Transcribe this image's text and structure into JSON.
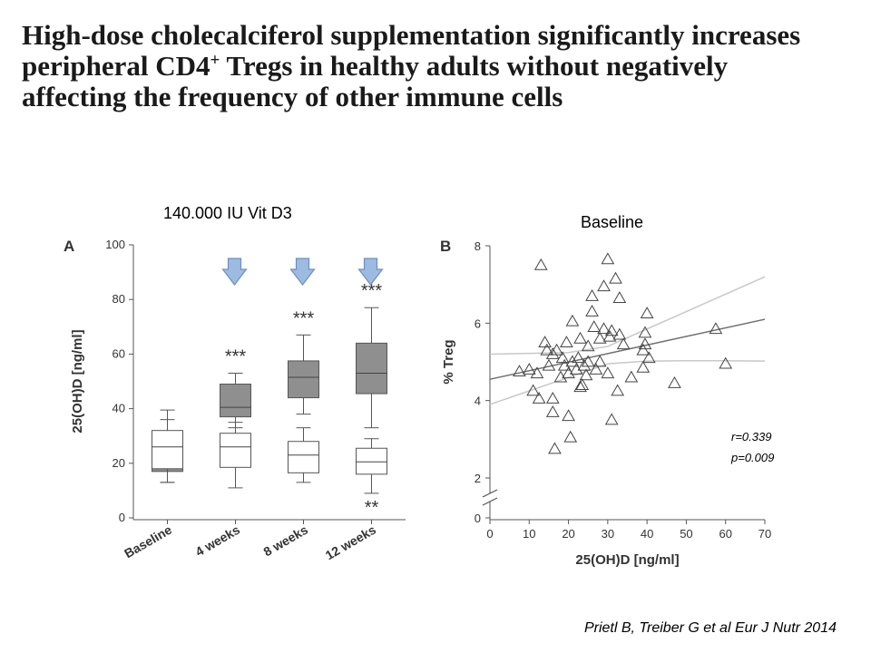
{
  "slide": {
    "title_lines": [
      "High-dose cholecalciferol supplementation significantly increases",
      "peripheral CD4",
      " Tregs in healthy adults without negatively",
      "affecting the frequency of other immune cells"
    ],
    "title_superscript": "+",
    "dose_label": "140.000 IU Vit D3",
    "baseline_label": "Baseline",
    "stats": {
      "r": "r=0.339",
      "p": "p=0.009"
    },
    "citation": "Prietl B, Treiber G et al Eur J Nutr 2014"
  },
  "chart_data": [
    {
      "type": "box",
      "panel": "A",
      "ylabel": "25(OH)D [ng/ml]",
      "ylim": [
        0,
        100
      ],
      "yticks": [
        0,
        20,
        40,
        60,
        80,
        100
      ],
      "categories": [
        "Baseline",
        "4 weeks",
        "8 weeks",
        "12 weeks"
      ],
      "dose_arrow_categories": [
        "4 weeks",
        "8 weeks",
        "12 weeks"
      ],
      "arrow_color": "#9dbbe0",
      "arrow_stroke": "#6d8fbf",
      "box_fill_treated": "#8f8f8f",
      "box_fill_control": "#ffffff",
      "series": [
        {
          "group": "treated",
          "boxes": [
            {
              "category": "Baseline",
              "whisker_low": 13,
              "q1": 17,
              "median": 18.5,
              "q3": 31.5,
              "whisker_high": 39.5,
              "annotation": ""
            },
            {
              "category": "4 weeks",
              "whisker_low": 33,
              "q1": 37,
              "median": 40.5,
              "q3": 49,
              "whisker_high": 53,
              "annotation": "***"
            },
            {
              "category": "8 weeks",
              "whisker_low": 38,
              "q1": 44,
              "median": 51.5,
              "q3": 57.5,
              "whisker_high": 67,
              "annotation": "***"
            },
            {
              "category": "12 weeks",
              "whisker_low": 33,
              "q1": 45.5,
              "median": 53,
              "q3": 64,
              "whisker_high": 77,
              "annotation": "***"
            }
          ]
        },
        {
          "group": "control",
          "boxes": [
            {
              "category": "Baseline",
              "whisker_low": 13,
              "q1": 18,
              "median": 26,
              "q3": 32,
              "whisker_high": 36,
              "annotation": ""
            },
            {
              "category": "4 weeks",
              "whisker_low": 11,
              "q1": 18.5,
              "median": 26,
              "q3": 31,
              "whisker_high": 35,
              "annotation": ""
            },
            {
              "category": "8 weeks",
              "whisker_low": 13,
              "q1": 16.5,
              "median": 23,
              "q3": 28,
              "whisker_high": 33,
              "annotation": ""
            },
            {
              "category": "12 weeks",
              "whisker_low": 9,
              "q1": 16,
              "median": 20.5,
              "q3": 25.5,
              "whisker_high": 29,
              "annotation": "**"
            }
          ]
        }
      ]
    },
    {
      "type": "scatter",
      "panel": "B",
      "xlabel": "25(OH)D [ng/ml]",
      "ylabel": "% Treg",
      "xlim": [
        0,
        70
      ],
      "xticks": [
        0,
        10,
        20,
        30,
        40,
        50,
        60,
        70
      ],
      "ylim": [
        0,
        8
      ],
      "yticks": [
        0,
        2,
        4,
        6,
        8
      ],
      "axis_break": true,
      "marker": "open-triangle",
      "points": [
        [
          7.5,
          4.75
        ],
        [
          10,
          4.8
        ],
        [
          11,
          4.25
        ],
        [
          12,
          4.7
        ],
        [
          13,
          7.5
        ],
        [
          12.5,
          4.05
        ],
        [
          14,
          5.5
        ],
        [
          14.5,
          5.3
        ],
        [
          15,
          4.9
        ],
        [
          16,
          4.05
        ],
        [
          16,
          3.7
        ],
        [
          16.5,
          2.75
        ],
        [
          16,
          5.2
        ],
        [
          17,
          5.3
        ],
        [
          18,
          4.6
        ],
        [
          18.5,
          5.1
        ],
        [
          19,
          4.9
        ],
        [
          19.5,
          5.5
        ],
        [
          20,
          3.6
        ],
        [
          20,
          4.7
        ],
        [
          20.5,
          3.05
        ],
        [
          21,
          6.05
        ],
        [
          21,
          5.0
        ],
        [
          22,
          4.8
        ],
        [
          22.5,
          5.1
        ],
        [
          23,
          4.35
        ],
        [
          23.5,
          4.4
        ],
        [
          23,
          5.6
        ],
        [
          24,
          4.9
        ],
        [
          24.5,
          4.65
        ],
        [
          25,
          5.0
        ],
        [
          25,
          5.4
        ],
        [
          26,
          6.3
        ],
        [
          26,
          6.7
        ],
        [
          26.5,
          5.9
        ],
        [
          27,
          4.8
        ],
        [
          28,
          5.0
        ],
        [
          28,
          5.6
        ],
        [
          29,
          6.95
        ],
        [
          29,
          5.85
        ],
        [
          30,
          4.7
        ],
        [
          30,
          7.65
        ],
        [
          30.5,
          5.65
        ],
        [
          31,
          5.8
        ],
        [
          31,
          3.5
        ],
        [
          32,
          7.15
        ],
        [
          32.5,
          4.25
        ],
        [
          33,
          5.7
        ],
        [
          33,
          6.65
        ],
        [
          34,
          5.45
        ],
        [
          36,
          4.6
        ],
        [
          39,
          4.85
        ],
        [
          39,
          5.3
        ],
        [
          39.5,
          5.45
        ],
        [
          39.5,
          5.75
        ],
        [
          40,
          6.25
        ],
        [
          40.5,
          5.1
        ],
        [
          47,
          4.45
        ],
        [
          57.5,
          5.85
        ],
        [
          60,
          4.95
        ]
      ],
      "regression": {
        "x": [
          0,
          70
        ],
        "y": [
          4.55,
          6.1
        ]
      },
      "ci_upper": {
        "x": [
          0,
          10,
          20,
          30,
          40,
          50,
          60,
          70
        ],
        "y": [
          5.2,
          5.22,
          5.24,
          5.4,
          5.85,
          6.3,
          6.75,
          7.2
        ]
      },
      "ci_lower": {
        "x": [
          0,
          10,
          20,
          30,
          40,
          50,
          60,
          70
        ],
        "y": [
          3.9,
          4.25,
          4.6,
          4.95,
          5.02,
          5.03,
          5.03,
          5.02
        ]
      },
      "annotation_r": "r=0.339",
      "annotation_p": "p=0.009"
    }
  ]
}
